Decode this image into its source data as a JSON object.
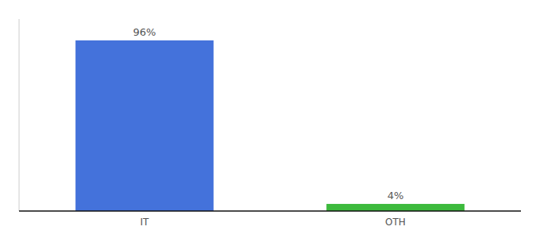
{
  "chart_data": {
    "type": "bar",
    "categories": [
      "IT",
      "OTH"
    ],
    "values": [
      96,
      4
    ],
    "value_labels": [
      "96%",
      "4%"
    ],
    "colors": [
      "#4472db",
      "#3dba3d"
    ],
    "ylim": [
      0,
      108
    ],
    "yticks": [],
    "data_labels": true,
    "tick_labels": "x",
    "grid": false
  }
}
